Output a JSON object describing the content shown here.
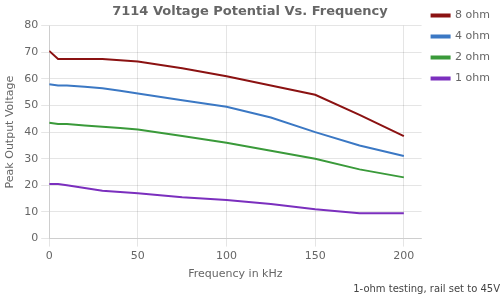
{
  "chart_data": {
    "type": "line",
    "title": "7114 Voltage Potential Vs. Frequency",
    "xlabel": "Frequency in kHz",
    "ylabel": "Peak Output Voltage",
    "annotation": "1-ohm testing, rail set to 45V",
    "x": [
      0,
      5,
      10,
      20,
      30,
      40,
      50,
      75,
      100,
      125,
      150,
      175,
      200
    ],
    "series": [
      {
        "name": "8 ohm",
        "color": "#8B1212",
        "values": [
          70.5,
          67.5,
          67.5,
          67.5,
          67.5,
          67.0,
          66.5,
          64.0,
          61.0,
          57.5,
          54.0,
          46.5,
          38.5
        ]
      },
      {
        "name": "4 ohm",
        "color": "#3B78C4",
        "values": [
          58.0,
          57.5,
          57.5,
          57.0,
          56.5,
          55.5,
          54.5,
          52.0,
          49.5,
          45.5,
          40.0,
          35.0,
          31.0
        ]
      },
      {
        "name": "2 ohm",
        "color": "#3A9A3A",
        "values": [
          43.5,
          43.0,
          43.0,
          42.5,
          42.0,
          41.5,
          41.0,
          38.5,
          36.0,
          33.0,
          30.0,
          26.0,
          23.0
        ]
      },
      {
        "name": "1 ohm",
        "color": "#7B2FBE",
        "values": [
          20.5,
          20.5,
          20.0,
          19.0,
          18.0,
          17.5,
          17.0,
          15.5,
          14.5,
          13.0,
          11.0,
          9.5,
          9.5
        ]
      }
    ],
    "xlim": [
      0,
      210
    ],
    "ylim": [
      0,
      80
    ],
    "xticks": [
      0,
      50,
      100,
      150,
      200
    ],
    "yticks": [
      0,
      10,
      20,
      30,
      40,
      50,
      60,
      70,
      80
    ],
    "grid": true,
    "legend": "right"
  }
}
